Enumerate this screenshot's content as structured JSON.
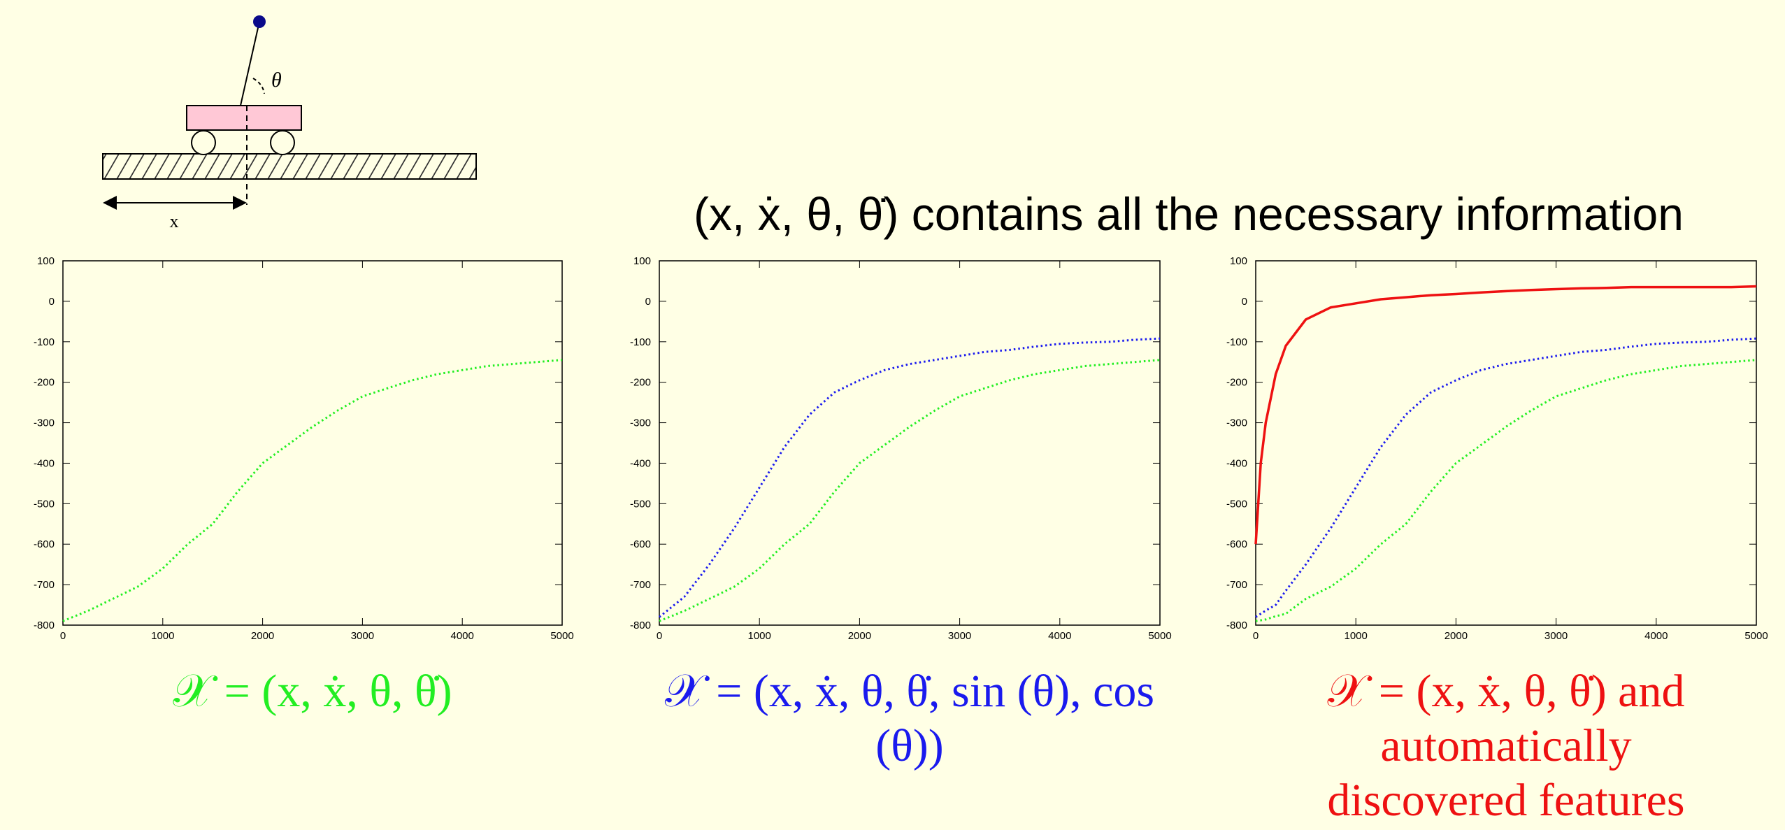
{
  "headline": "(x, ẋ, θ, θ̇) contains all the necessary information",
  "diagram": {
    "angle_label": "θ",
    "position_label": "x"
  },
  "chart_data": [
    {
      "type": "line",
      "caption": "𝒳 = (x, ẋ, θ, θ̇)",
      "caption_color": "#22ee22",
      "xlim": [
        0,
        5000
      ],
      "ylim": [
        -800,
        100
      ],
      "xticks": [
        0,
        1000,
        2000,
        3000,
        4000,
        5000
      ],
      "yticks": [
        -800,
        -700,
        -600,
        -500,
        -400,
        -300,
        -200,
        -100,
        0,
        100
      ],
      "x": [
        0,
        250,
        500,
        750,
        1000,
        1250,
        1500,
        1750,
        2000,
        2250,
        2500,
        2750,
        3000,
        3250,
        3500,
        3750,
        4000,
        4250,
        4500,
        4750,
        5000
      ],
      "series": [
        {
          "color": "#22ee22",
          "dotted": true,
          "values": [
            -790,
            -765,
            -735,
            -705,
            -660,
            -600,
            -550,
            -470,
            -400,
            -355,
            -310,
            -270,
            -235,
            -215,
            -195,
            -180,
            -170,
            -160,
            -155,
            -150,
            -145
          ]
        }
      ]
    },
    {
      "type": "line",
      "caption": "𝒳 = (x, ẋ, θ, θ̇, sin (θ), cos (θ))",
      "caption_color": "#1a1aee",
      "xlim": [
        0,
        5000
      ],
      "ylim": [
        -800,
        100
      ],
      "xticks": [
        0,
        1000,
        2000,
        3000,
        4000,
        5000
      ],
      "yticks": [
        -800,
        -700,
        -600,
        -500,
        -400,
        -300,
        -200,
        -100,
        0,
        100
      ],
      "x": [
        0,
        250,
        500,
        750,
        1000,
        1250,
        1500,
        1750,
        2000,
        2250,
        2500,
        2750,
        3000,
        3250,
        3500,
        3750,
        4000,
        4250,
        4500,
        4750,
        5000
      ],
      "series": [
        {
          "color": "#1a1aee",
          "dotted": true,
          "values": [
            -780,
            -730,
            -650,
            -560,
            -460,
            -360,
            -280,
            -225,
            -195,
            -170,
            -155,
            -145,
            -135,
            -125,
            -120,
            -112,
            -105,
            -102,
            -100,
            -95,
            -92
          ]
        },
        {
          "color": "#22ee22",
          "dotted": true,
          "values": [
            -790,
            -765,
            -735,
            -705,
            -660,
            -600,
            -550,
            -470,
            -400,
            -355,
            -310,
            -270,
            -235,
            -215,
            -195,
            -180,
            -170,
            -160,
            -155,
            -150,
            -145
          ]
        }
      ]
    },
    {
      "type": "line",
      "caption": "𝒳 = (x, ẋ, θ, θ̇) and automatically discovered features",
      "caption_color": "#ee1111",
      "xlim": [
        0,
        5000
      ],
      "ylim": [
        -800,
        100
      ],
      "xticks": [
        0,
        1000,
        2000,
        3000,
        4000,
        5000
      ],
      "yticks": [
        -800,
        -700,
        -600,
        -500,
        -400,
        -300,
        -200,
        -100,
        0,
        100
      ],
      "x": [
        0,
        50,
        100,
        200,
        300,
        500,
        750,
        1000,
        1250,
        1500,
        1750,
        2000,
        2250,
        2500,
        2750,
        3000,
        3250,
        3500,
        3750,
        4000,
        4250,
        4500,
        4750,
        5000
      ],
      "series": [
        {
          "color": "#ee1111",
          "dotted": false,
          "values": [
            -600,
            -400,
            -300,
            -180,
            -110,
            -45,
            -15,
            -5,
            5,
            10,
            15,
            18,
            22,
            25,
            28,
            30,
            32,
            33,
            35,
            35,
            35,
            35,
            35,
            37
          ]
        },
        {
          "color": "#1a1aee",
          "dotted": true,
          "values": [
            -780,
            -772,
            -764,
            -750,
            -715,
            -650,
            -560,
            -460,
            -360,
            -280,
            -225,
            -195,
            -170,
            -155,
            -145,
            -135,
            -125,
            -120,
            -112,
            -105,
            -102,
            -100,
            -95,
            -92
          ]
        },
        {
          "color": "#22ee22",
          "dotted": true,
          "values": [
            -790,
            -788,
            -786,
            -778,
            -772,
            -735,
            -705,
            -660,
            -600,
            -550,
            -470,
            -400,
            -355,
            -310,
            -270,
            -235,
            -215,
            -195,
            -180,
            -170,
            -160,
            -155,
            -150,
            -145
          ]
        }
      ]
    }
  ]
}
